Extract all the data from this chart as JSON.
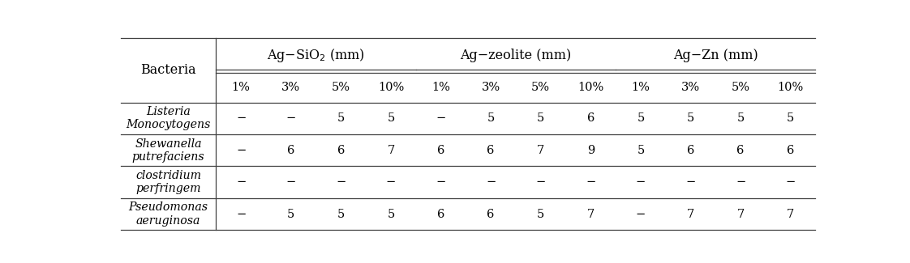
{
  "group_labels": [
    "Ag−SiO$_2$ (mm)",
    "Ag−zeolite (mm)",
    "Ag−Zn (mm)"
  ],
  "group_col_ranges": [
    [
      1,
      4
    ],
    [
      5,
      8
    ],
    [
      9,
      12
    ]
  ],
  "pct_labels": [
    "1%",
    "3%",
    "5%",
    "10%",
    "1%",
    "3%",
    "5%",
    "10%",
    "1%",
    "3%",
    "5%",
    "10%"
  ],
  "rows": [
    [
      "Listeria\nMonocytogens",
      "−",
      "−",
      "5",
      "5",
      "−",
      "5",
      "5",
      "6",
      "5",
      "5",
      "5",
      "5"
    ],
    [
      "Shewanella\nputrefaciens",
      "−",
      "6",
      "6",
      "7",
      "6",
      "6",
      "7",
      "9",
      "5",
      "6",
      "6",
      "6"
    ],
    [
      "clostridium\nperfringem",
      "−",
      "−",
      "−",
      "−",
      "−",
      "−",
      "−",
      "−",
      "−",
      "−",
      "−",
      "−"
    ],
    [
      "Pseudomonas\naeruginosa",
      "−",
      "5",
      "5",
      "5",
      "6",
      "6",
      "5",
      "7",
      "−",
      "7",
      "7",
      "7"
    ]
  ],
  "bacteria_label": "Bacteria",
  "background_color": "#ffffff",
  "line_color": "#404040",
  "text_color": "#000000",
  "font_size": 10.5,
  "header_font_size": 11.5
}
